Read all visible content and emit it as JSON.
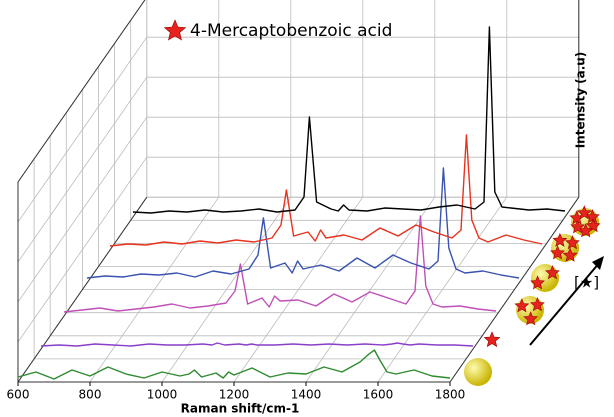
{
  "chart_data": {
    "type": "waterfall",
    "legend": "4-Mercaptobenzoic acid",
    "x_label": "Raman shift/cm-1",
    "y_label": "Intensity (a.u)",
    "annotation": "[★]",
    "xlim": [
      600,
      1800
    ],
    "xticks": [
      600,
      800,
      1000,
      1200,
      1400,
      1600,
      1800
    ],
    "ylim": [
      0,
      200
    ],
    "x": [
      600,
      650,
      700,
      750,
      800,
      850,
      900,
      950,
      1000,
      1050,
      1075,
      1090,
      1110,
      1150,
      1170,
      1185,
      1200,
      1250,
      1300,
      1350,
      1400,
      1450,
      1500,
      1550,
      1575,
      1590,
      1605,
      1625,
      1650,
      1700,
      1750,
      1800
    ],
    "series": [
      {
        "color": "#2e8b2e",
        "values": [
          5,
          10,
          3,
          12,
          6,
          15,
          8,
          4,
          10,
          6,
          8,
          12,
          5,
          9,
          4,
          10,
          7,
          14,
          5,
          9,
          8,
          15,
          10,
          20,
          28,
          32,
          22,
          10,
          8,
          12,
          6,
          4
        ]
      },
      {
        "color": "#8a3fc9",
        "values": [
          3,
          4,
          3,
          5,
          4,
          3,
          5,
          4,
          4,
          5,
          4,
          6,
          4,
          5,
          4,
          5,
          4,
          4,
          5,
          4,
          5,
          4,
          5,
          4,
          5,
          6,
          5,
          4,
          5,
          4,
          4,
          3
        ]
      },
      {
        "color": "#c050b8",
        "values": [
          4,
          6,
          8,
          5,
          7,
          9,
          12,
          8,
          10,
          13,
          25,
          52,
          12,
          18,
          9,
          20,
          15,
          16,
          10,
          22,
          14,
          24,
          18,
          12,
          25,
          100,
          30,
          12,
          9,
          10,
          7,
          5
        ]
      },
      {
        "color": "#3a52b0",
        "values": [
          5,
          7,
          6,
          9,
          8,
          10,
          6,
          12,
          9,
          14,
          28,
          65,
          15,
          20,
          10,
          22,
          14,
          18,
          12,
          25,
          15,
          28,
          20,
          14,
          22,
          115,
          35,
          14,
          10,
          12,
          8,
          5
        ]
      },
      {
        "color": "#e8321e",
        "values": [
          4,
          6,
          5,
          8,
          6,
          9,
          7,
          10,
          8,
          12,
          25,
          60,
          14,
          18,
          9,
          20,
          12,
          15,
          10,
          22,
          14,
          25,
          18,
          12,
          20,
          115,
          30,
          12,
          8,
          15,
          10,
          6
        ]
      },
      {
        "color": "#000000",
        "values": [
          5,
          4,
          6,
          5,
          7,
          5,
          6,
          8,
          5,
          7,
          20,
          100,
          15,
          8,
          6,
          12,
          7,
          6,
          9,
          8,
          7,
          10,
          12,
          8,
          15,
          190,
          25,
          10,
          9,
          7,
          8,
          6
        ]
      }
    ]
  }
}
